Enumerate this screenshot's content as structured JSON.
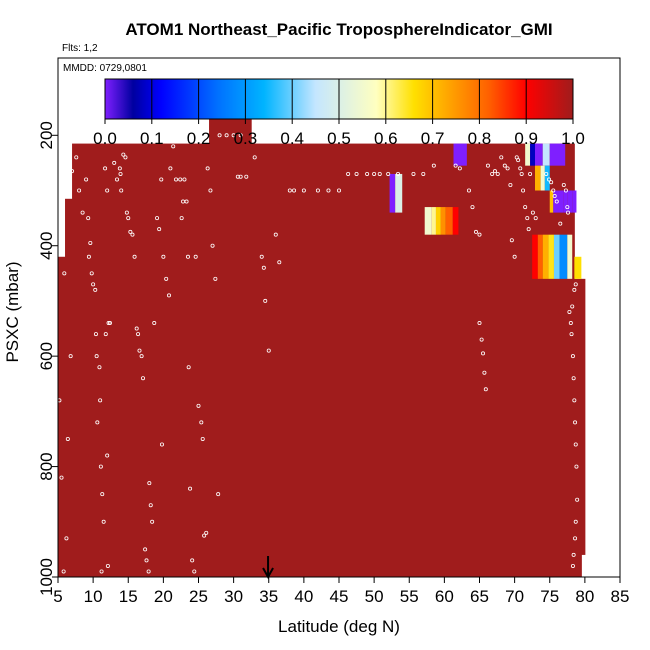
{
  "chart_data": {
    "type": "heatmap",
    "title": "ATOM1 Northeast_Pacific TroposphereIndicator_GMI",
    "flights_label": "Flts: 1,2",
    "date_label": "MMDD: 0729,0801",
    "xlabel": "Latitude (deg N)",
    "ylabel": "PSXC (mbar)",
    "xlim": [
      5,
      85
    ],
    "ylim": [
      1000,
      60
    ],
    "x_ticks": [
      "5",
      "10",
      "15",
      "20",
      "25",
      "30",
      "35",
      "40",
      "45",
      "50",
      "55",
      "60",
      "65",
      "70",
      "75",
      "80",
      "85"
    ],
    "y_ticks": [
      "200",
      "400",
      "600",
      "800",
      "1000"
    ],
    "x_tick_values": [
      5,
      10,
      15,
      20,
      25,
      30,
      35,
      40,
      45,
      50,
      55,
      60,
      65,
      70,
      75,
      80,
      85
    ],
    "y_tick_values": [
      200,
      400,
      600,
      800,
      1000
    ],
    "colorbar": {
      "ticks": [
        "0.0",
        "0.1",
        "0.2",
        "0.3",
        "0.4",
        "0.5",
        "0.6",
        "0.7",
        "0.8",
        "0.9",
        "1.0"
      ],
      "colors": [
        "#7f1fff",
        "#0000a0",
        "#0000ff",
        "#0070ff",
        "#00b4ff",
        "#c4e6ff",
        "#ffffc0",
        "#ffe000",
        "#ffa000",
        "#ff6000",
        "#ff0000",
        "#a01c1c"
      ],
      "stops": [
        0.0,
        0.06,
        0.12,
        0.24,
        0.34,
        0.45,
        0.58,
        0.66,
        0.74,
        0.82,
        0.9,
        1.0
      ]
    },
    "fill_value": 1.0,
    "fill_columns": [
      {
        "lat": [
          5,
          6
        ],
        "top": 420,
        "bottom": 1000
      },
      {
        "lat": [
          6,
          7
        ],
        "top": 315,
        "bottom": 1000
      },
      {
        "lat": [
          7,
          26.5
        ],
        "top": 215,
        "bottom": 1000
      },
      {
        "lat": [
          26.5,
          32.5
        ],
        "top": 165,
        "bottom": 1000
      },
      {
        "lat": [
          32.5,
          78.5
        ],
        "top": 215,
        "bottom": 1000
      },
      {
        "lat": [
          78.5,
          79.5
        ],
        "top": 460,
        "bottom": 1000
      },
      {
        "lat": [
          79.5,
          80
        ],
        "top": 460,
        "bottom": 960
      }
    ],
    "special_cells": [
      {
        "lat": [
          52.2,
          53
        ],
        "p": [
          270,
          340
        ],
        "value": 0.0
      },
      {
        "lat": [
          53,
          54
        ],
        "p": [
          270,
          340
        ],
        "value": 0.5
      },
      {
        "lat": [
          57.2,
          58.2
        ],
        "p": [
          330,
          380
        ],
        "value": 0.55
      },
      {
        "lat": [
          58.2,
          58.8
        ],
        "p": [
          330,
          380
        ],
        "value": 0.6
      },
      {
        "lat": [
          58.8,
          59.5
        ],
        "p": [
          330,
          380
        ],
        "value": 0.68
      },
      {
        "lat": [
          59.5,
          60.2
        ],
        "p": [
          330,
          380
        ],
        "value": 0.76
      },
      {
        "lat": [
          60.2,
          61.2
        ],
        "p": [
          330,
          380
        ],
        "value": 0.82
      },
      {
        "lat": [
          61.2,
          62
        ],
        "p": [
          330,
          380
        ],
        "value": 0.9
      },
      {
        "lat": [
          61.3,
          63.2
        ],
        "p": [
          215,
          255
        ],
        "value": 0.0
      },
      {
        "lat": [
          71.5,
          72.2
        ],
        "p": [
          215,
          255
        ],
        "value": 0.55
      },
      {
        "lat": [
          72.2,
          72.9
        ],
        "p": [
          215,
          255
        ],
        "value": 0.08
      },
      {
        "lat": [
          72.9,
          74
        ],
        "p": [
          215,
          255
        ],
        "value": 0.0
      },
      {
        "lat": [
          74,
          75
        ],
        "p": [
          215,
          255
        ],
        "value": 0.45
      },
      {
        "lat": [
          75,
          77.2
        ],
        "p": [
          215,
          255
        ],
        "value": 0.0
      },
      {
        "lat": [
          72.9,
          73.7
        ],
        "p": [
          255,
          300
        ],
        "value": 0.72
      },
      {
        "lat": [
          73.7,
          74.3
        ],
        "p": [
          255,
          300
        ],
        "value": 0.55
      },
      {
        "lat": [
          74.3,
          75
        ],
        "p": [
          255,
          300
        ],
        "value": 0.35
      },
      {
        "lat": [
          75,
          75.5
        ],
        "p": [
          300,
          340
        ],
        "value": 0.7
      },
      {
        "lat": [
          75.5,
          77
        ],
        "p": [
          300,
          340
        ],
        "value": 0.0
      },
      {
        "lat": [
          77,
          77.5
        ],
        "p": [
          300,
          340
        ],
        "value": 0.0
      },
      {
        "lat": [
          77.5,
          78.2
        ],
        "p": [
          300,
          340
        ],
        "value": 0.0
      },
      {
        "lat": [
          78.2,
          78.8
        ],
        "p": [
          300,
          340
        ],
        "value": 0.0
      },
      {
        "lat": [
          72.5,
          73.3
        ],
        "p": [
          380,
          460
        ],
        "value": 0.9
      },
      {
        "lat": [
          73.3,
          74
        ],
        "p": [
          380,
          460
        ],
        "value": 0.82
      },
      {
        "lat": [
          74,
          74.8
        ],
        "p": [
          380,
          460
        ],
        "value": 0.72
      },
      {
        "lat": [
          74.8,
          75.6
        ],
        "p": [
          380,
          460
        ],
        "value": 0.65
      },
      {
        "lat": [
          75.6,
          76.4
        ],
        "p": [
          380,
          460
        ],
        "value": 0.4
      },
      {
        "lat": [
          76.4,
          77.5
        ],
        "p": [
          380,
          460
        ],
        "value": 0.28
      },
      {
        "lat": [
          77.5,
          78.2
        ],
        "p": [
          380,
          460
        ],
        "value": 0.55
      },
      {
        "lat": [
          78.5,
          79.5
        ],
        "p": [
          420,
          460
        ],
        "value": 0.66
      }
    ],
    "points": [
      [
        5.2,
        680
      ],
      [
        5.5,
        820
      ],
      [
        5.8,
        990
      ],
      [
        6.2,
        930
      ],
      [
        6.4,
        750
      ],
      [
        6.8,
        600
      ],
      [
        5.9,
        450
      ],
      [
        7,
        265
      ],
      [
        7.6,
        240
      ],
      [
        8,
        300
      ],
      [
        8.5,
        340
      ],
      [
        9,
        280
      ],
      [
        9.3,
        350
      ],
      [
        9.6,
        395
      ],
      [
        9.4,
        420
      ],
      [
        9.8,
        450
      ],
      [
        10,
        470
      ],
      [
        10.3,
        480
      ],
      [
        10.4,
        560
      ],
      [
        10.5,
        600
      ],
      [
        10.6,
        720
      ],
      [
        10.9,
        620
      ],
      [
        11,
        680
      ],
      [
        11.1,
        800
      ],
      [
        11.3,
        850
      ],
      [
        11.2,
        990
      ],
      [
        11.5,
        900
      ],
      [
        11.7,
        260
      ],
      [
        12,
        300
      ],
      [
        11.8,
        560
      ],
      [
        12.2,
        540
      ],
      [
        12.4,
        540
      ],
      [
        12,
        780
      ],
      [
        12.1,
        980
      ],
      [
        13,
        250
      ],
      [
        13.4,
        280
      ],
      [
        13.8,
        260
      ],
      [
        14,
        300
      ],
      [
        13.9,
        270
      ],
      [
        14.3,
        235
      ],
      [
        14.6,
        240
      ],
      [
        14.8,
        340
      ],
      [
        15,
        350
      ],
      [
        15.3,
        375
      ],
      [
        15.6,
        380
      ],
      [
        15.9,
        420
      ],
      [
        16.2,
        550
      ],
      [
        16.4,
        560
      ],
      [
        16.6,
        590
      ],
      [
        16.9,
        600
      ],
      [
        17.1,
        640
      ],
      [
        17.4,
        950
      ],
      [
        17.6,
        970
      ],
      [
        17.9,
        990
      ],
      [
        18,
        830
      ],
      [
        18.2,
        870
      ],
      [
        18.4,
        900
      ],
      [
        18.7,
        540
      ],
      [
        19.1,
        350
      ],
      [
        19.4,
        370
      ],
      [
        19.7,
        280
      ],
      [
        19.8,
        760
      ],
      [
        20,
        420
      ],
      [
        20.4,
        460
      ],
      [
        20.8,
        490
      ],
      [
        21,
        260
      ],
      [
        21.4,
        220
      ],
      [
        21.8,
        280
      ],
      [
        22.4,
        280
      ],
      [
        22.6,
        350
      ],
      [
        22.8,
        320
      ],
      [
        23,
        280
      ],
      [
        23.3,
        320
      ],
      [
        23.5,
        420
      ],
      [
        23.6,
        620
      ],
      [
        23.8,
        840
      ],
      [
        24.1,
        970
      ],
      [
        24.4,
        990
      ],
      [
        24.6,
        420
      ],
      [
        25,
        690
      ],
      [
        25.4,
        720
      ],
      [
        25.6,
        750
      ],
      [
        25.8,
        925
      ],
      [
        26.1,
        920
      ],
      [
        26.3,
        260
      ],
      [
        26.7,
        300
      ],
      [
        27,
        400
      ],
      [
        27.4,
        460
      ],
      [
        27.8,
        850
      ],
      [
        28,
        200
      ],
      [
        29,
        200
      ],
      [
        30,
        200
      ],
      [
        31,
        200
      ],
      [
        30.6,
        275
      ],
      [
        31,
        275
      ],
      [
        31.8,
        275
      ],
      [
        33,
        240
      ],
      [
        34,
        420
      ],
      [
        34.3,
        440
      ],
      [
        34.5,
        500
      ],
      [
        35,
        590
      ],
      [
        36,
        380
      ],
      [
        36.5,
        430
      ],
      [
        38,
        300
      ],
      [
        38.6,
        300
      ],
      [
        40,
        300
      ],
      [
        42,
        300
      ],
      [
        43.5,
        300
      ],
      [
        45,
        300
      ],
      [
        46.3,
        270
      ],
      [
        47.5,
        270
      ],
      [
        49,
        270
      ],
      [
        50,
        270
      ],
      [
        50.8,
        270
      ],
      [
        52,
        270
      ],
      [
        53.4,
        270
      ],
      [
        55.6,
        270
      ],
      [
        57,
        270
      ],
      [
        58.5,
        255
      ],
      [
        61.6,
        255
      ],
      [
        62.2,
        260
      ],
      [
        63.5,
        300
      ],
      [
        64,
        330
      ],
      [
        64.5,
        375
      ],
      [
        65,
        380
      ],
      [
        65,
        540
      ],
      [
        65.3,
        570
      ],
      [
        65.5,
        595
      ],
      [
        65.7,
        630
      ],
      [
        65.9,
        660
      ],
      [
        66.2,
        255
      ],
      [
        66.8,
        270
      ],
      [
        67.2,
        265
      ],
      [
        67.6,
        270
      ],
      [
        68.1,
        240
      ],
      [
        68.6,
        255
      ],
      [
        69,
        260
      ],
      [
        69.4,
        290
      ],
      [
        69.6,
        390
      ],
      [
        70,
        420
      ],
      [
        70.3,
        240
      ],
      [
        70.5,
        245
      ],
      [
        70.8,
        260
      ],
      [
        71,
        270
      ],
      [
        71.2,
        300
      ],
      [
        71.5,
        330
      ],
      [
        71.8,
        350
      ],
      [
        72,
        370
      ],
      [
        72.2,
        270
      ],
      [
        72.6,
        340
      ],
      [
        73,
        350
      ],
      [
        74.5,
        270
      ],
      [
        74.9,
        280
      ],
      [
        75.2,
        285
      ],
      [
        75.5,
        300
      ],
      [
        75.7,
        310
      ],
      [
        76,
        320
      ],
      [
        76.5,
        360
      ],
      [
        77,
        290
      ],
      [
        77.3,
        300
      ],
      [
        77.5,
        330
      ],
      [
        77.6,
        340
      ],
      [
        77.8,
        520
      ],
      [
        78,
        540
      ],
      [
        78.1,
        560
      ],
      [
        78.3,
        600
      ],
      [
        78.4,
        640
      ],
      [
        78.5,
        680
      ],
      [
        78.6,
        720
      ],
      [
        78.7,
        760
      ],
      [
        78.8,
        800
      ],
      [
        78.9,
        860
      ],
      [
        78.7,
        900
      ],
      [
        78.6,
        930
      ],
      [
        78.4,
        960
      ],
      [
        78.3,
        980
      ],
      [
        78.2,
        510
      ],
      [
        78.5,
        480
      ],
      [
        78.7,
        470
      ]
    ],
    "marker": {
      "lat": 34.9,
      "label": "arrow"
    }
  }
}
